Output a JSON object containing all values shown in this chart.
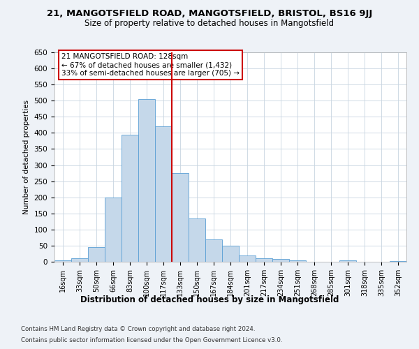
{
  "title_line1": "21, MANGOTSFIELD ROAD, MANGOTSFIELD, BRISTOL, BS16 9JJ",
  "title_line2": "Size of property relative to detached houses in Mangotsfield",
  "xlabel": "Distribution of detached houses by size in Mangotsfield",
  "ylabel": "Number of detached properties",
  "categories": [
    "16sqm",
    "33sqm",
    "50sqm",
    "66sqm",
    "83sqm",
    "100sqm",
    "117sqm",
    "133sqm",
    "150sqm",
    "167sqm",
    "184sqm",
    "201sqm",
    "217sqm",
    "234sqm",
    "251sqm",
    "268sqm",
    "285sqm",
    "301sqm",
    "318sqm",
    "335sqm",
    "352sqm"
  ],
  "values": [
    5,
    10,
    45,
    200,
    395,
    505,
    420,
    275,
    135,
    70,
    50,
    20,
    10,
    8,
    5,
    0,
    0,
    5,
    0,
    0,
    2
  ],
  "bar_color": "#c5d8ea",
  "bar_edge_color": "#5a9fd4",
  "vline_x_idx": 6.5,
  "vline_color": "#cc0000",
  "annotation_text": "21 MANGOTSFIELD ROAD: 128sqm\n← 67% of detached houses are smaller (1,432)\n33% of semi-detached houses are larger (705) →",
  "annotation_box_color": "#ffffff",
  "annotation_box_edge": "#cc0000",
  "ylim": [
    0,
    650
  ],
  "yticks": [
    0,
    50,
    100,
    150,
    200,
    250,
    300,
    350,
    400,
    450,
    500,
    550,
    600,
    650
  ],
  "footnote1": "Contains HM Land Registry data © Crown copyright and database right 2024.",
  "footnote2": "Contains public sector information licensed under the Open Government Licence v3.0.",
  "bg_color": "#eef2f7",
  "plot_bg_color": "#ffffff",
  "grid_color": "#c8d4e0"
}
